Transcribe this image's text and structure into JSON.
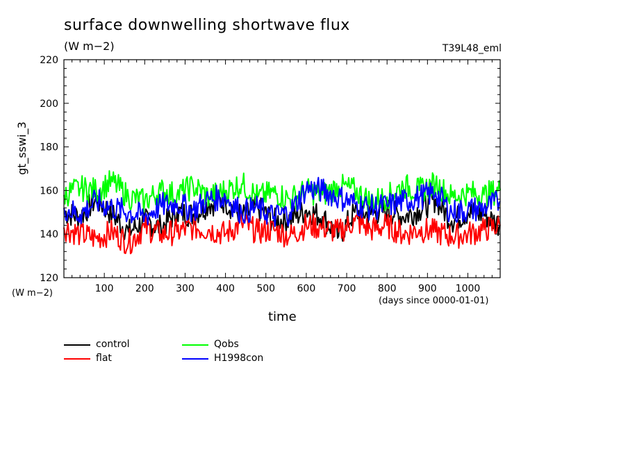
{
  "chart_data": {
    "type": "line",
    "title": "surface downwelling shortwave flux",
    "units_label": "(W m−2)",
    "run_label": "T39L48_eml",
    "ylabel": "gt_sswi_3",
    "yunits": "(W m−2)",
    "xlabel": "time",
    "xunits": "(days since 0000-01-01)",
    "xlim": [
      0,
      1080
    ],
    "ylim": [
      120,
      220
    ],
    "x_ticks": [
      100,
      200,
      300,
      400,
      500,
      600,
      700,
      800,
      900,
      1000
    ],
    "y_ticks": [
      120,
      140,
      160,
      180,
      200,
      220
    ],
    "grid": false,
    "legend_placement": "bottom",
    "series": [
      {
        "name": "control",
        "color": "#000000",
        "x": [
          0,
          40,
          80,
          120,
          160,
          200,
          240,
          280,
          320,
          360,
          400,
          440,
          480,
          520,
          560,
          600,
          640,
          680,
          720,
          760,
          800,
          840,
          880,
          920,
          960,
          1000,
          1040,
          1080
        ],
        "values": [
          150,
          148,
          156,
          149,
          141,
          146,
          143,
          150,
          149,
          154,
          155,
          148,
          152,
          146,
          147,
          151,
          148,
          139,
          150,
          149,
          151,
          148,
          151,
          156,
          146,
          150,
          149,
          144
        ]
      },
      {
        "name": "flat",
        "color": "#ff0000",
        "x": [
          0,
          40,
          80,
          120,
          160,
          200,
          240,
          280,
          320,
          360,
          400,
          440,
          480,
          520,
          560,
          600,
          640,
          680,
          720,
          760,
          800,
          840,
          880,
          920,
          960,
          1000,
          1040,
          1080
        ],
        "values": [
          143,
          140,
          138,
          141,
          136,
          143,
          140,
          141,
          143,
          142,
          140,
          145,
          141,
          142,
          139,
          144,
          143,
          141,
          146,
          142,
          144,
          140,
          142,
          141,
          139,
          140,
          142,
          144
        ]
      },
      {
        "name": "Qobs",
        "color": "#00ff00",
        "x": [
          0,
          40,
          80,
          120,
          160,
          200,
          240,
          280,
          320,
          360,
          400,
          440,
          480,
          520,
          560,
          600,
          640,
          680,
          720,
          760,
          800,
          840,
          880,
          920,
          960,
          1000,
          1040,
          1080
        ],
        "values": [
          158,
          161,
          160,
          164,
          157,
          155,
          160,
          158,
          162,
          157,
          160,
          163,
          157,
          159,
          156,
          160,
          158,
          162,
          160,
          155,
          157,
          162,
          160,
          163,
          157,
          159,
          158,
          160
        ]
      },
      {
        "name": "H1998con",
        "color": "#0000ff",
        "x": [
          0,
          40,
          80,
          120,
          160,
          200,
          240,
          280,
          320,
          360,
          400,
          440,
          480,
          520,
          560,
          600,
          640,
          680,
          720,
          760,
          800,
          840,
          880,
          920,
          960,
          1000,
          1040,
          1080
        ],
        "values": [
          152,
          149,
          155,
          152,
          150,
          148,
          153,
          154,
          151,
          156,
          157,
          150,
          152,
          148,
          150,
          161,
          160,
          157,
          154,
          152,
          153,
          155,
          157,
          159,
          150,
          151,
          152,
          155
        ]
      }
    ]
  }
}
